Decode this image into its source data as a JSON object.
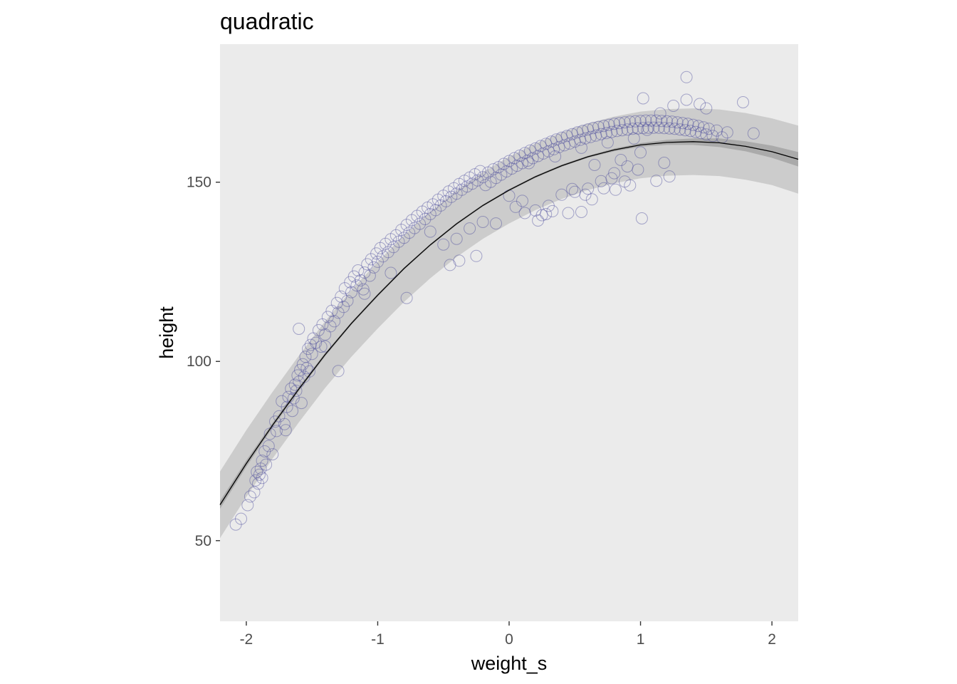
{
  "chart_data": {
    "type": "scatter",
    "title": "quadratic",
    "xlabel": "weight_s",
    "ylabel": "height",
    "xlim": [
      -2.2,
      2.2
    ],
    "ylim": [
      27.5,
      188.5
    ],
    "x_ticks": [
      -2,
      -1,
      0,
      1,
      2
    ],
    "x_tick_labels": [
      "-2",
      "-1",
      "0",
      "1",
      "2"
    ],
    "y_ticks": [
      50,
      100,
      150
    ],
    "y_tick_labels": [
      "50",
      "100",
      "150"
    ],
    "grid": false,
    "legend": "none",
    "colors": {
      "panel_background": "#ebebeb",
      "point_stroke": "#4a4a9c",
      "prediction_band": "#cccccc",
      "mean_band": "#aaaaaa",
      "fit_line": "#000000"
    },
    "fit": {
      "model": "quadratic",
      "x": [
        -2.2,
        -2.0,
        -1.8,
        -1.6,
        -1.4,
        -1.2,
        -1.0,
        -0.8,
        -0.6,
        -0.4,
        -0.2,
        0.0,
        0.2,
        0.4,
        0.6,
        0.8,
        1.0,
        1.2,
        1.4,
        1.6,
        1.8,
        2.0,
        2.2
      ],
      "mean": [
        60.0,
        71.5,
        82.2,
        92.3,
        101.9,
        110.6,
        118.5,
        125.9,
        132.5,
        138.4,
        143.5,
        147.8,
        151.5,
        154.6,
        157.1,
        159.0,
        160.4,
        161.1,
        161.3,
        161.0,
        160.0,
        158.5,
        156.4
      ],
      "mean_lower": [
        58.9,
        70.6,
        81.5,
        91.7,
        101.4,
        110.2,
        118.1,
        125.6,
        132.2,
        138.1,
        143.2,
        147.5,
        151.2,
        154.3,
        156.8,
        158.6,
        159.9,
        160.4,
        160.4,
        159.8,
        158.6,
        156.8,
        154.4
      ],
      "mean_upper": [
        61.1,
        72.4,
        82.9,
        92.9,
        102.4,
        111.0,
        118.9,
        126.2,
        132.8,
        138.7,
        143.8,
        148.1,
        151.8,
        154.9,
        157.4,
        159.4,
        160.9,
        161.8,
        162.2,
        162.2,
        161.4,
        160.2,
        158.4
      ],
      "pred_lower": [
        50.7,
        62.2,
        72.9,
        83.0,
        92.6,
        101.3,
        109.2,
        116.6,
        123.2,
        129.1,
        134.2,
        138.5,
        142.2,
        145.3,
        147.8,
        149.7,
        151.1,
        151.8,
        152.0,
        151.7,
        150.7,
        149.2,
        146.8
      ],
      "pred_upper": [
        69.3,
        80.8,
        91.5,
        101.6,
        111.2,
        119.9,
        127.8,
        135.2,
        141.8,
        147.7,
        152.8,
        157.1,
        160.8,
        163.9,
        166.4,
        168.3,
        169.7,
        170.4,
        170.6,
        170.3,
        169.3,
        167.8,
        165.8
      ]
    },
    "points": {
      "x": [
        -2.08,
        -2.04,
        -1.99,
        -1.97,
        -1.94,
        -1.93,
        -1.92,
        -1.91,
        -1.9,
        -1.89,
        -1.88,
        -1.88,
        -1.86,
        -1.85,
        -1.83,
        -1.82,
        -1.8,
        -1.78,
        -1.77,
        -1.75,
        -1.73,
        -1.71,
        -1.69,
        -1.68,
        -1.66,
        -1.65,
        -1.64,
        -1.63,
        -1.62,
        -1.61,
        -1.6,
        -1.59,
        -1.58,
        -1.57,
        -1.56,
        -1.55,
        -1.54,
        -1.53,
        -1.52,
        -1.51,
        -1.5,
        -1.49,
        -1.47,
        -1.45,
        -1.43,
        -1.42,
        -1.4,
        -1.38,
        -1.36,
        -1.35,
        -1.33,
        -1.31,
        -1.3,
        -1.28,
        -1.26,
        -1.25,
        -1.23,
        -1.21,
        -1.2,
        -1.18,
        -1.16,
        -1.15,
        -1.13,
        -1.11,
        -1.1,
        -1.08,
        -1.06,
        -1.05,
        -1.03,
        -1.01,
        -1.0,
        -0.98,
        -0.96,
        -0.94,
        -0.92,
        -0.9,
        -0.88,
        -0.86,
        -0.84,
        -0.82,
        -0.8,
        -0.78,
        -0.76,
        -0.74,
        -0.72,
        -0.7,
        -0.68,
        -0.66,
        -0.64,
        -0.62,
        -0.6,
        -0.58,
        -0.56,
        -0.54,
        -0.52,
        -0.5,
        -0.48,
        -0.46,
        -0.44,
        -0.42,
        -0.4,
        -0.38,
        -0.36,
        -0.34,
        -0.32,
        -0.3,
        -0.28,
        -0.26,
        -0.24,
        -0.22,
        -0.2,
        -0.18,
        -0.16,
        -0.14,
        -0.12,
        -0.1,
        -0.08,
        -0.06,
        -0.04,
        -0.02,
        0.0,
        0.02,
        0.04,
        0.06,
        0.08,
        0.1,
        0.12,
        0.14,
        0.16,
        0.18,
        0.2,
        0.22,
        0.24,
        0.26,
        0.28,
        0.3,
        0.32,
        0.34,
        0.36,
        0.38,
        0.4,
        0.42,
        0.44,
        0.46,
        0.48,
        0.5,
        0.52,
        0.54,
        0.56,
        0.58,
        0.6,
        0.62,
        0.64,
        0.66,
        0.68,
        0.7,
        0.72,
        0.74,
        0.76,
        0.78,
        0.8,
        0.82,
        0.84,
        0.86,
        0.88,
        0.9,
        0.92,
        0.94,
        0.96,
        0.98,
        1.0,
        1.02,
        1.04,
        1.06,
        1.08,
        1.1,
        1.12,
        1.14,
        1.16,
        1.18,
        1.2,
        1.22,
        1.24,
        1.26,
        1.28,
        1.3,
        1.32,
        1.34,
        1.36,
        1.38,
        1.4,
        1.42,
        1.44,
        1.46,
        1.48,
        1.5,
        1.52,
        1.55,
        1.58,
        1.62,
        1.66,
        1.78,
        1.86,
        0.05,
        0.12,
        0.25,
        0.33,
        0.45,
        0.55,
        0.63,
        0.72,
        0.81,
        0.92,
        1.01,
        1.12,
        1.22,
        0.0,
        0.1,
        0.2,
        0.3,
        0.4,
        0.5,
        0.6,
        0.7,
        0.8,
        0.9,
        -0.1,
        -0.2,
        -0.3,
        -0.4,
        -0.5,
        0.15,
        0.35,
        0.55,
        0.75,
        0.95,
        1.05,
        1.15,
        1.25,
        1.35,
        1.45,
        0.65,
        0.85,
        1.0,
        -0.25,
        -0.45,
        -1.6,
        -1.3,
        -0.78,
        -0.38,
        0.22,
        0.48,
        0.88,
        1.02,
        1.35,
        1.5,
        -0.6,
        -0.9,
        -1.1,
        -1.4,
        -1.7,
        0.28,
        0.58,
        0.78,
        0.98,
        1.18
      ],
      "y": [
        54.5,
        56.1,
        59.9,
        62.3,
        63.5,
        66.8,
        69.2,
        65.9,
        68.4,
        70.1,
        72.3,
        67.5,
        74.9,
        71.2,
        76.4,
        79.8,
        74.1,
        83.2,
        80.6,
        84.7,
        88.9,
        82.5,
        87.3,
        90.1,
        92.4,
        86.2,
        89.7,
        93.5,
        91.8,
        96.1,
        94.3,
        97.6,
        88.4,
        99.2,
        95.7,
        101.3,
        98.1,
        103.5,
        97.2,
        104.6,
        102.1,
        106.4,
        105.2,
        108.7,
        104.1,
        110.3,
        107.5,
        112.4,
        109.8,
        114.1,
        111.2,
        116.3,
        113.6,
        118.1,
        115.2,
        120.4,
        116.9,
        122.1,
        119.3,
        123.7,
        121.2,
        125.4,
        122.6,
        120.1,
        124.8,
        127.1,
        123.9,
        128.5,
        126.2,
        130.1,
        127.8,
        131.6,
        129.3,
        132.8,
        130.5,
        134.1,
        131.9,
        135.2,
        133.4,
        136.7,
        134.5,
        138.1,
        135.9,
        139.4,
        137.2,
        140.6,
        138.4,
        141.8,
        139.7,
        142.9,
        141.1,
        143.8,
        142.2,
        145.1,
        143.5,
        146.2,
        144.7,
        147.4,
        145.9,
        148.3,
        146.8,
        149.5,
        147.9,
        150.4,
        148.8,
        151.3,
        149.6,
        152.2,
        150.5,
        153.1,
        151.4,
        149.2,
        152.7,
        150.1,
        153.6,
        151.2,
        154.2,
        152.1,
        155.1,
        153.0,
        155.9,
        153.8,
        156.7,
        154.6,
        157.4,
        155.3,
        158.1,
        156.0,
        158.8,
        156.7,
        159.4,
        157.3,
        160.1,
        158.0,
        160.7,
        158.6,
        161.3,
        159.2,
        161.9,
        159.8,
        162.4,
        160.3,
        162.9,
        160.8,
        163.4,
        161.3,
        163.9,
        161.8,
        164.3,
        162.2,
        164.7,
        162.6,
        165.1,
        163.0,
        165.4,
        163.4,
        165.7,
        163.7,
        166.0,
        164.0,
        166.3,
        164.3,
        166.5,
        164.5,
        166.7,
        164.7,
        166.9,
        164.9,
        167.0,
        165.0,
        167.1,
        165.1,
        167.2,
        165.2,
        167.2,
        165.2,
        167.2,
        165.2,
        167.1,
        165.1,
        167.0,
        165.0,
        166.9,
        164.9,
        166.7,
        164.7,
        166.5,
        164.5,
        166.3,
        164.3,
        166.0,
        164.0,
        165.7,
        163.7,
        165.3,
        163.3,
        164.9,
        162.9,
        164.4,
        162.5,
        163.9,
        172.3,
        163.6,
        143.1,
        141.4,
        140.8,
        141.9,
        141.4,
        141.7,
        145.2,
        148.3,
        147.9,
        149.1,
        139.9,
        150.4,
        151.6,
        146.2,
        144.8,
        142.1,
        143.4,
        146.5,
        147.3,
        148.2,
        150.3,
        152.5,
        154.4,
        138.5,
        138.9,
        137.1,
        134.2,
        132.6,
        155.3,
        157.2,
        159.6,
        161.1,
        162.2,
        164.6,
        169.2,
        171.3,
        173.0,
        171.8,
        154.8,
        156.2,
        158.3,
        129.4,
        126.9,
        109.1,
        97.3,
        117.7,
        128.1,
        139.3,
        148.1,
        150.2,
        173.4,
        179.3,
        170.6,
        136.2,
        124.7,
        118.9,
        104.2,
        80.8,
        141.1,
        146.5,
        151.1,
        153.5,
        155.4
      ]
    }
  }
}
